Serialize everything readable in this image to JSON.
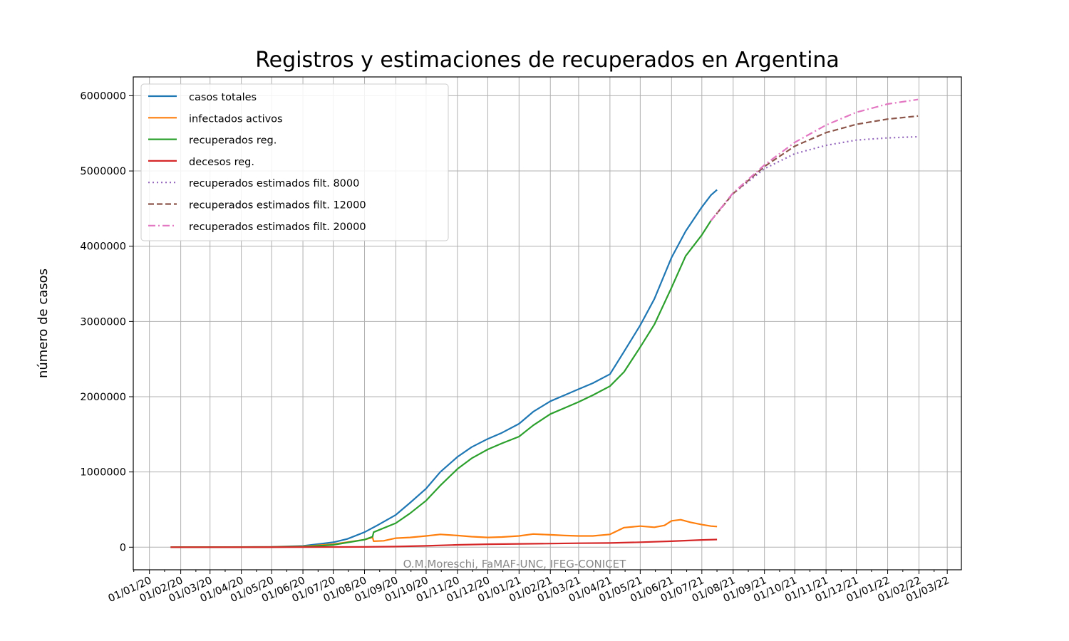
{
  "chart_data": {
    "type": "line",
    "title": "Registros y estimaciones de recuperados en Argentina",
    "xlabel": "",
    "ylabel": "número de casos",
    "xlim": [
      "2019-12-16",
      "2022-03-15"
    ],
    "ylim": [
      -300000,
      6250000
    ],
    "x_ticks": [
      "01/01/20",
      "01/02/20",
      "01/03/20",
      "01/04/20",
      "01/05/20",
      "01/06/20",
      "01/07/20",
      "01/08/20",
      "01/09/20",
      "01/10/20",
      "01/11/20",
      "01/12/20",
      "01/01/21",
      "01/02/21",
      "01/03/21",
      "01/04/21",
      "01/05/21",
      "01/06/21",
      "01/07/21",
      "01/08/21",
      "01/09/21",
      "01/10/21",
      "01/11/21",
      "01/12/21",
      "01/01/22",
      "01/02/22",
      "01/03/22"
    ],
    "y_ticks": [
      "0",
      "1000000",
      "2000000",
      "3000000",
      "4000000",
      "5000000",
      "6000000"
    ],
    "grid": true,
    "legend_position": "top-left",
    "annotation": "O.M.Moreschi, FaMAF-UNC, IFEG-CONICET",
    "series": [
      {
        "name": "casos totales",
        "color": "#1f77b4",
        "style": "solid",
        "points": [
          [
            "2020-01-22",
            0
          ],
          [
            "2020-03-01",
            0
          ],
          [
            "2020-05-01",
            5000
          ],
          [
            "2020-06-01",
            17000
          ],
          [
            "2020-07-01",
            65000
          ],
          [
            "2020-07-15",
            110000
          ],
          [
            "2020-08-01",
            200000
          ],
          [
            "2020-08-15",
            300000
          ],
          [
            "2020-09-01",
            430000
          ],
          [
            "2020-09-15",
            590000
          ],
          [
            "2020-10-01",
            780000
          ],
          [
            "2020-10-15",
            1000000
          ],
          [
            "2020-11-01",
            1200000
          ],
          [
            "2020-11-15",
            1330000
          ],
          [
            "2020-12-01",
            1440000
          ],
          [
            "2020-12-15",
            1520000
          ],
          [
            "2021-01-01",
            1640000
          ],
          [
            "2021-01-15",
            1800000
          ],
          [
            "2021-02-01",
            1940000
          ],
          [
            "2021-02-15",
            2020000
          ],
          [
            "2021-03-01",
            2100000
          ],
          [
            "2021-03-15",
            2180000
          ],
          [
            "2021-04-01",
            2300000
          ],
          [
            "2021-04-15",
            2600000
          ],
          [
            "2021-05-01",
            2950000
          ],
          [
            "2021-05-15",
            3300000
          ],
          [
            "2021-06-01",
            3850000
          ],
          [
            "2021-06-15",
            4200000
          ],
          [
            "2021-07-01",
            4520000
          ],
          [
            "2021-07-10",
            4680000
          ],
          [
            "2021-07-16",
            4750000
          ]
        ]
      },
      {
        "name": "infectados activos",
        "color": "#ff7f0e",
        "style": "solid",
        "points": [
          [
            "2020-01-22",
            0
          ],
          [
            "2020-05-01",
            3000
          ],
          [
            "2020-06-01",
            10000
          ],
          [
            "2020-07-01",
            40000
          ],
          [
            "2020-08-01",
            100000
          ],
          [
            "2020-08-09",
            130000
          ],
          [
            "2020-08-10",
            80000
          ],
          [
            "2020-08-20",
            85000
          ],
          [
            "2020-09-01",
            120000
          ],
          [
            "2020-09-15",
            130000
          ],
          [
            "2020-10-01",
            150000
          ],
          [
            "2020-10-15",
            170000
          ],
          [
            "2020-11-01",
            155000
          ],
          [
            "2020-11-15",
            140000
          ],
          [
            "2020-12-01",
            130000
          ],
          [
            "2020-12-15",
            135000
          ],
          [
            "2021-01-01",
            150000
          ],
          [
            "2021-01-15",
            175000
          ],
          [
            "2021-02-01",
            165000
          ],
          [
            "2021-02-15",
            155000
          ],
          [
            "2021-03-01",
            150000
          ],
          [
            "2021-03-15",
            150000
          ],
          [
            "2021-04-01",
            170000
          ],
          [
            "2021-04-15",
            260000
          ],
          [
            "2021-05-01",
            280000
          ],
          [
            "2021-05-15",
            265000
          ],
          [
            "2021-05-25",
            290000
          ],
          [
            "2021-06-01",
            350000
          ],
          [
            "2021-06-10",
            365000
          ],
          [
            "2021-06-20",
            330000
          ],
          [
            "2021-07-01",
            300000
          ],
          [
            "2021-07-10",
            280000
          ],
          [
            "2021-07-16",
            275000
          ]
        ]
      },
      {
        "name": "recuperados reg.",
        "color": "#2ca02c",
        "style": "solid",
        "points": [
          [
            "2020-01-22",
            0
          ],
          [
            "2020-05-01",
            2000
          ],
          [
            "2020-06-01",
            6000
          ],
          [
            "2020-07-01",
            30000
          ],
          [
            "2020-08-01",
            100000
          ],
          [
            "2020-08-09",
            140000
          ],
          [
            "2020-08-10",
            200000
          ],
          [
            "2020-09-01",
            320000
          ],
          [
            "2020-09-15",
            450000
          ],
          [
            "2020-10-01",
            620000
          ],
          [
            "2020-10-15",
            820000
          ],
          [
            "2020-11-01",
            1040000
          ],
          [
            "2020-11-15",
            1180000
          ],
          [
            "2020-12-01",
            1300000
          ],
          [
            "2020-12-15",
            1380000
          ],
          [
            "2021-01-01",
            1470000
          ],
          [
            "2021-01-15",
            1620000
          ],
          [
            "2021-02-01",
            1770000
          ],
          [
            "2021-02-15",
            1850000
          ],
          [
            "2021-03-01",
            1930000
          ],
          [
            "2021-03-15",
            2020000
          ],
          [
            "2021-04-01",
            2140000
          ],
          [
            "2021-04-15",
            2330000
          ],
          [
            "2021-05-01",
            2660000
          ],
          [
            "2021-05-15",
            2960000
          ],
          [
            "2021-06-01",
            3450000
          ],
          [
            "2021-06-15",
            3870000
          ],
          [
            "2021-07-01",
            4150000
          ],
          [
            "2021-07-10",
            4340000
          ]
        ]
      },
      {
        "name": "decesos reg.",
        "color": "#d62728",
        "style": "solid",
        "points": [
          [
            "2020-01-22",
            0
          ],
          [
            "2020-06-01",
            600
          ],
          [
            "2020-08-01",
            4000
          ],
          [
            "2020-09-01",
            9000
          ],
          [
            "2020-10-01",
            18000
          ],
          [
            "2020-11-01",
            31000
          ],
          [
            "2020-12-01",
            40000
          ],
          [
            "2021-01-01",
            45000
          ],
          [
            "2021-02-01",
            48000
          ],
          [
            "2021-03-01",
            53000
          ],
          [
            "2021-04-01",
            56000
          ],
          [
            "2021-05-01",
            66000
          ],
          [
            "2021-06-01",
            80000
          ],
          [
            "2021-07-01",
            97000
          ],
          [
            "2021-07-16",
            102000
          ]
        ]
      },
      {
        "name": "recuperados estimados filt. 8000",
        "color": "#9467bd",
        "style": "dotted",
        "points": [
          [
            "2021-07-10",
            4340000
          ],
          [
            "2021-08-01",
            4700000
          ],
          [
            "2021-09-01",
            5030000
          ],
          [
            "2021-10-01",
            5230000
          ],
          [
            "2021-11-01",
            5340000
          ],
          [
            "2021-12-01",
            5410000
          ],
          [
            "2022-01-01",
            5440000
          ],
          [
            "2022-01-31",
            5455000
          ]
        ]
      },
      {
        "name": "recuperados estimados filt. 12000",
        "color": "#8c564b",
        "style": "dashed",
        "points": [
          [
            "2021-07-10",
            4340000
          ],
          [
            "2021-08-01",
            4700000
          ],
          [
            "2021-09-01",
            5060000
          ],
          [
            "2021-10-01",
            5330000
          ],
          [
            "2021-11-01",
            5510000
          ],
          [
            "2021-12-01",
            5620000
          ],
          [
            "2022-01-01",
            5690000
          ],
          [
            "2022-01-31",
            5730000
          ]
        ]
      },
      {
        "name": "recuperados estimados filt. 20000",
        "color": "#e377c2",
        "style": "dashdot",
        "points": [
          [
            "2021-07-10",
            4340000
          ],
          [
            "2021-08-01",
            4710000
          ],
          [
            "2021-09-01",
            5080000
          ],
          [
            "2021-10-01",
            5380000
          ],
          [
            "2021-11-01",
            5610000
          ],
          [
            "2021-12-01",
            5780000
          ],
          [
            "2022-01-01",
            5890000
          ],
          [
            "2022-01-31",
            5950000
          ]
        ]
      }
    ]
  }
}
